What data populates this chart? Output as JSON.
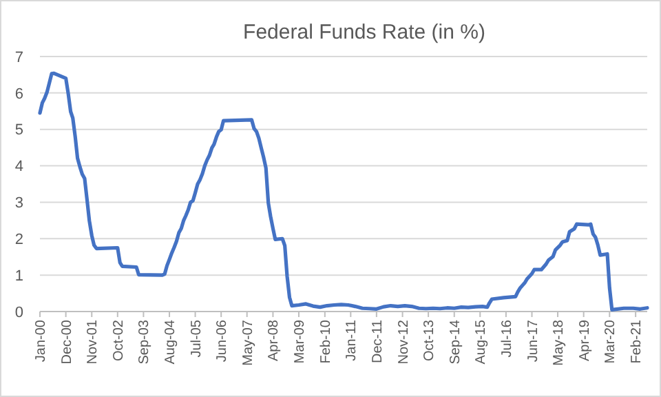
{
  "chart_data": {
    "type": "line",
    "title": "Federal Funds Rate (in %)",
    "x": [
      "2000-01",
      "2000-02",
      "2000-03",
      "2000-04",
      "2000-05",
      "2000-06",
      "2000-07",
      "2000-12",
      "2001-01",
      "2001-02",
      "2001-03",
      "2001-04",
      "2001-05",
      "2001-06",
      "2001-07",
      "2001-08",
      "2001-09",
      "2001-10",
      "2001-11",
      "2001-12",
      "2002-01",
      "2002-10",
      "2002-11",
      "2002-12",
      "2003-06",
      "2003-07",
      "2004-05",
      "2004-06",
      "2004-07",
      "2004-08",
      "2004-09",
      "2004-10",
      "2004-11",
      "2004-12",
      "2005-01",
      "2005-02",
      "2005-03",
      "2005-04",
      "2005-05",
      "2005-06",
      "2005-07",
      "2005-08",
      "2005-09",
      "2005-10",
      "2005-11",
      "2005-12",
      "2006-01",
      "2006-02",
      "2006-03",
      "2006-04",
      "2006-05",
      "2006-06",
      "2006-07",
      "2007-07",
      "2007-08",
      "2007-09",
      "2007-10",
      "2007-11",
      "2007-12",
      "2008-01",
      "2008-02",
      "2008-03",
      "2008-04",
      "2008-05",
      "2008-08",
      "2008-09",
      "2008-10",
      "2008-11",
      "2008-12",
      "2009-03",
      "2009-06",
      "2009-09",
      "2009-12",
      "2010-03",
      "2010-06",
      "2010-09",
      "2010-12",
      "2011-03",
      "2011-06",
      "2011-09",
      "2011-12",
      "2012-03",
      "2012-06",
      "2012-09",
      "2012-12",
      "2013-03",
      "2013-06",
      "2013-09",
      "2013-12",
      "2014-03",
      "2014-06",
      "2014-09",
      "2014-12",
      "2015-03",
      "2015-06",
      "2015-09",
      "2015-11",
      "2015-12",
      "2016-01",
      "2016-06",
      "2016-11",
      "2016-12",
      "2017-01",
      "2017-03",
      "2017-04",
      "2017-06",
      "2017-07",
      "2017-10",
      "2017-12",
      "2018-01",
      "2018-03",
      "2018-04",
      "2018-06",
      "2018-07",
      "2018-09",
      "2018-10",
      "2018-12",
      "2019-01",
      "2019-06",
      "2019-07",
      "2019-08",
      "2019-09",
      "2019-10",
      "2019-11",
      "2020-02",
      "2020-03",
      "2020-04",
      "2020-09",
      "2021-01",
      "2021-04",
      "2021-07"
    ],
    "series": [
      {
        "color": "#4472c4",
        "values": [
          5.45,
          5.73,
          5.85,
          6.02,
          6.27,
          6.53,
          6.54,
          6.4,
          5.98,
          5.49,
          5.31,
          4.8,
          4.21,
          3.97,
          3.77,
          3.65,
          3.07,
          2.49,
          2.09,
          1.82,
          1.73,
          1.75,
          1.34,
          1.24,
          1.22,
          1.01,
          1.0,
          1.03,
          1.26,
          1.43,
          1.61,
          1.76,
          1.93,
          2.16,
          2.28,
          2.5,
          2.63,
          2.79,
          3.0,
          3.04,
          3.26,
          3.5,
          3.62,
          3.78,
          4.0,
          4.16,
          4.29,
          4.49,
          4.59,
          4.79,
          4.94,
          4.99,
          5.24,
          5.26,
          5.02,
          4.94,
          4.76,
          4.49,
          4.24,
          3.94,
          2.98,
          2.61,
          2.28,
          1.98,
          2.0,
          1.81,
          0.97,
          0.39,
          0.16,
          0.18,
          0.21,
          0.15,
          0.12,
          0.16,
          0.18,
          0.19,
          0.18,
          0.14,
          0.09,
          0.08,
          0.07,
          0.13,
          0.16,
          0.14,
          0.16,
          0.14,
          0.09,
          0.08,
          0.09,
          0.08,
          0.1,
          0.09,
          0.12,
          0.11,
          0.13,
          0.14,
          0.12,
          0.24,
          0.34,
          0.38,
          0.41,
          0.54,
          0.65,
          0.79,
          0.9,
          1.04,
          1.15,
          1.15,
          1.3,
          1.41,
          1.51,
          1.69,
          1.82,
          1.91,
          1.95,
          2.19,
          2.27,
          2.4,
          2.38,
          2.4,
          2.13,
          2.04,
          1.83,
          1.55,
          1.58,
          0.65,
          0.05,
          0.09,
          0.09,
          0.07,
          0.1
        ]
      }
    ],
    "xlim": [
      "2000-01",
      "2021-07"
    ],
    "xticks": [
      {
        "value": "2000-01",
        "label": "Jan-00"
      },
      {
        "value": "2000-12",
        "label": "Dec-00"
      },
      {
        "value": "2001-11",
        "label": "Nov-01"
      },
      {
        "value": "2002-10",
        "label": "Oct-02"
      },
      {
        "value": "2003-09",
        "label": "Sep-03"
      },
      {
        "value": "2004-08",
        "label": "Aug-04"
      },
      {
        "value": "2005-07",
        "label": "Jul-05"
      },
      {
        "value": "2006-06",
        "label": "Jun-06"
      },
      {
        "value": "2007-05",
        "label": "May-07"
      },
      {
        "value": "2008-04",
        "label": "Apr-08"
      },
      {
        "value": "2009-03",
        "label": "Mar-09"
      },
      {
        "value": "2010-02",
        "label": "Feb-10"
      },
      {
        "value": "2011-01",
        "label": "Jan-11"
      },
      {
        "value": "2011-12",
        "label": "Dec-11"
      },
      {
        "value": "2012-11",
        "label": "Nov-12"
      },
      {
        "value": "2013-10",
        "label": "Oct-13"
      },
      {
        "value": "2014-09",
        "label": "Sep-14"
      },
      {
        "value": "2015-08",
        "label": "Aug-15"
      },
      {
        "value": "2016-07",
        "label": "Jul-16"
      },
      {
        "value": "2017-06",
        "label": "Jun-17"
      },
      {
        "value": "2018-05",
        "label": "May-18"
      },
      {
        "value": "2019-04",
        "label": "Apr-19"
      },
      {
        "value": "2020-03",
        "label": "Mar-20"
      },
      {
        "value": "2021-02",
        "label": "Feb-21"
      }
    ],
    "ylim": [
      0,
      7
    ],
    "yticks": [
      0,
      1,
      2,
      3,
      4,
      5,
      6,
      7
    ],
    "grid": "y",
    "marker": "none",
    "line_style": "solid"
  }
}
